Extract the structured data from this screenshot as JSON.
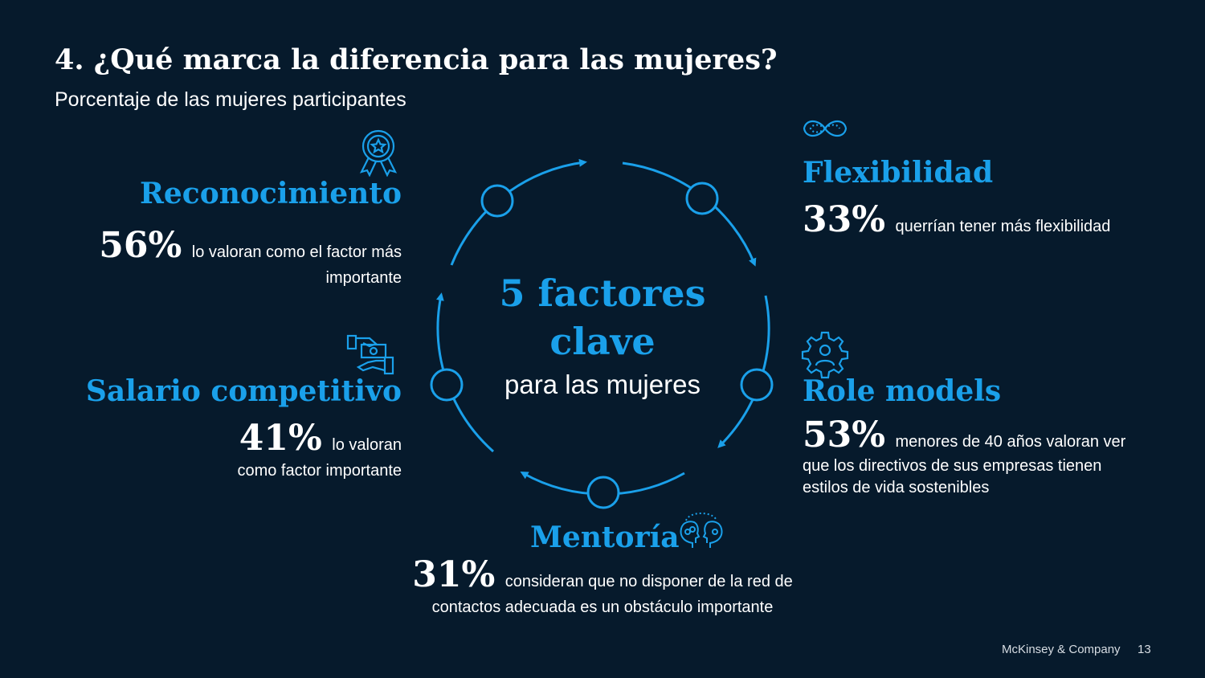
{
  "title": "4. ¿Qué marca la diferencia para las mujeres?",
  "subtitle": "Porcentaje de las mujeres participantes",
  "center": {
    "line1": "5 factores",
    "line2": "clave",
    "line3": "para las mujeres"
  },
  "factors": {
    "reconocimiento": {
      "name": "Reconocimiento",
      "pct": "56%",
      "desc1": "lo valoran como el factor más",
      "desc2": "importante",
      "icon": "award-ribbon-icon"
    },
    "salario": {
      "name": "Salario competitivo",
      "pct": "41%",
      "desc1": "lo valoran",
      "desc2": "como factor importante",
      "icon": "hand-money-icon"
    },
    "flexibilidad": {
      "name": "Flexibilidad",
      "pct": "33%",
      "desc1": "querrían tener más flexibilidad",
      "icon": "infinity-loop-icon"
    },
    "role_models": {
      "name": "Role models",
      "pct": "53%",
      "desc1": "menores de 40 años valoran ver",
      "desc2": "que los directivos de sus empresas tienen",
      "desc3": "estilos de vida sostenibles",
      "icon": "gear-person-icon"
    },
    "mentoria": {
      "name": "Mentoría",
      "pct": "31%",
      "desc1": "consideran que no disponer de la red de",
      "desc2": "contactos adecuada es un obstáculo importante",
      "icon": "heads-connection-icon"
    }
  },
  "footer": {
    "company": "McKinsey & Company",
    "page": "13"
  },
  "colors": {
    "background": "#061a2c",
    "accent": "#1aa0ea",
    "text": "#ffffff"
  }
}
